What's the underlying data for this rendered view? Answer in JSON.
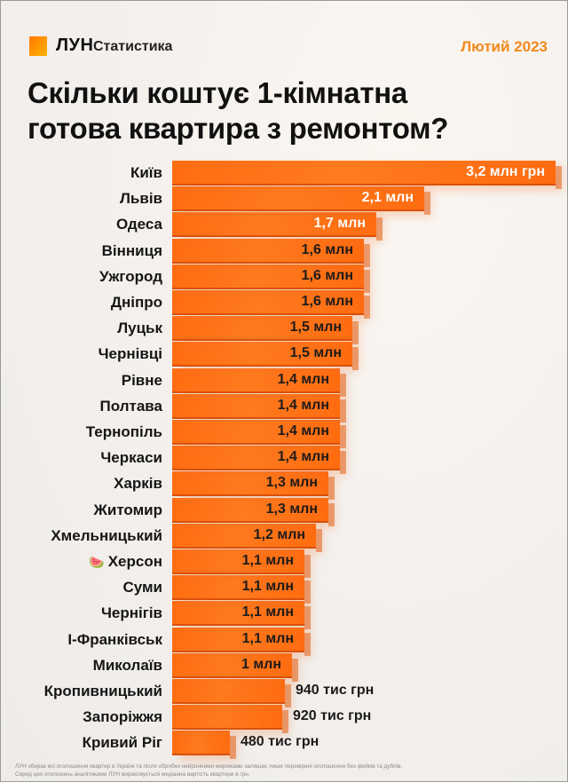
{
  "header": {
    "brand": "ЛУН",
    "brand_sub": "Статистика",
    "date": "Лютий 2023",
    "title_line1": "Скільки коштує 1-кімнатна",
    "title_line2": "готова квартира з ремонтом?"
  },
  "colors": {
    "bar": "#ff6d12",
    "accent_date": "#f28a1c",
    "background": "#f3f1ee"
  },
  "chart_data": {
    "type": "bar",
    "orientation": "horizontal",
    "title": "Скільки коштує 1-кімнатна готова квартира з ремонтом?",
    "xlabel": "",
    "ylabel": "",
    "unit": "млн грн",
    "grid": false,
    "legend": null,
    "categories": [
      "Київ",
      "Львів",
      "Одеса",
      "Вінниця",
      "Ужгород",
      "Дніпро",
      "Луцьк",
      "Чернівці",
      "Рівне",
      "Полтава",
      "Тернопіль",
      "Черкаси",
      "Харків",
      "Житомир",
      "Хмельницький",
      "Херсон",
      "Суми",
      "Чернігів",
      "І-Франківськ",
      "Миколаїв",
      "Кропивницький",
      "Запоріжжя",
      "Кривий Ріг"
    ],
    "values": [
      3.2,
      2.1,
      1.7,
      1.6,
      1.6,
      1.6,
      1.5,
      1.5,
      1.4,
      1.4,
      1.4,
      1.4,
      1.3,
      1.3,
      1.2,
      1.1,
      1.1,
      1.1,
      1.1,
      1.0,
      0.94,
      0.92,
      0.48
    ],
    "value_labels": [
      "3,2 млн грн",
      "2,1 млн",
      "1,7 млн",
      "1,6 млн",
      "1,6 млн",
      "1,6 млн",
      "1,5 млн",
      "1,5 млн",
      "1,4 млн",
      "1,4 млн",
      "1,4 млн",
      "1,4 млн",
      "1,3 млн",
      "1,3 млн",
      "1,2 млн",
      "1,1 млн",
      "1,1 млн",
      "1,1 млн",
      "1,1 млн",
      "1 млн",
      "940 тис грн",
      "920 тис грн",
      "480 тис грн"
    ]
  },
  "rows": [
    {
      "city": "Київ",
      "label": "3,2 млн грн",
      "emoji": ""
    },
    {
      "city": "Львів",
      "label": "2,1 млн",
      "emoji": ""
    },
    {
      "city": "Одеса",
      "label": "1,7 млн",
      "emoji": ""
    },
    {
      "city": "Вінниця",
      "label": "1,6 млн",
      "emoji": ""
    },
    {
      "city": "Ужгород",
      "label": "1,6 млн",
      "emoji": ""
    },
    {
      "city": "Дніпро",
      "label": "1,6 млн",
      "emoji": ""
    },
    {
      "city": "Луцьк",
      "label": "1,5 млн",
      "emoji": ""
    },
    {
      "city": "Чернівці",
      "label": "1,5 млн",
      "emoji": ""
    },
    {
      "city": "Рівне",
      "label": "1,4 млн",
      "emoji": ""
    },
    {
      "city": "Полтава",
      "label": "1,4 млн",
      "emoji": ""
    },
    {
      "city": "Тернопіль",
      "label": "1,4 млн",
      "emoji": ""
    },
    {
      "city": "Черкаси",
      "label": "1,4 млн",
      "emoji": ""
    },
    {
      "city": "Харків",
      "label": "1,3 млн",
      "emoji": ""
    },
    {
      "city": "Житомир",
      "label": "1,3 млн",
      "emoji": ""
    },
    {
      "city": "Хмельницький",
      "label": "1,2 млн",
      "emoji": ""
    },
    {
      "city": "Херсон",
      "label": "1,1 млн",
      "emoji": "🍉"
    },
    {
      "city": "Суми",
      "label": "1,1 млн",
      "emoji": ""
    },
    {
      "city": "Чернігів",
      "label": "1,1 млн",
      "emoji": ""
    },
    {
      "city": "І-Франківськ",
      "label": "1,1 млн",
      "emoji": ""
    },
    {
      "city": "Миколаїв",
      "label": "1 млн",
      "emoji": ""
    },
    {
      "city": "Кропивницький",
      "label": "940 тис грн",
      "emoji": ""
    },
    {
      "city": "Запоріжжя",
      "label": "920 тис грн",
      "emoji": ""
    },
    {
      "city": "Кривий Ріг",
      "label": "480 тис грн",
      "emoji": ""
    }
  ],
  "footer": {
    "line1": "ЛУН збирає всі оголошення квартир в Україні та після обробки нейронними мережами залишає лише перевірені оголошення без фейків та дублів.",
    "line2": "Серед цих оголошень аналітиками ЛУН вираховується медіанна вартість квартири в грн."
  }
}
